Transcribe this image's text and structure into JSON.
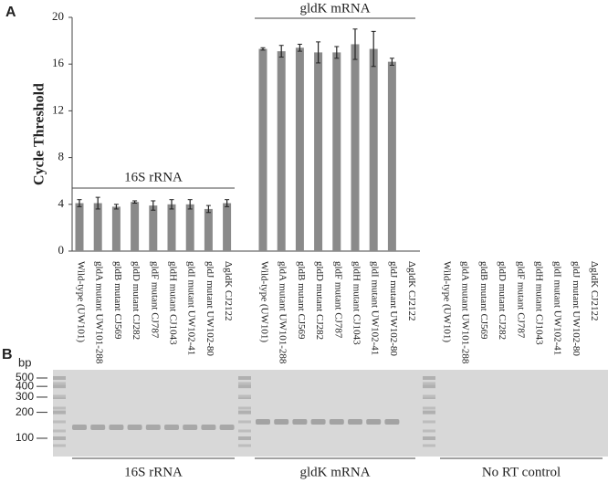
{
  "panel_labels": [
    "A",
    "B"
  ],
  "chart_data": {
    "type": "bar",
    "ylabel": "Cycle Threshold",
    "categories": [
      "Wild-type (UW101)",
      "gldA mutant UW101-288",
      "gldB mutant CJ569",
      "gldD mutant CJ282",
      "gldF mutant CJ787",
      "gldH mutant CJ1043",
      "gldI mutant UW102-41",
      "gldJ mutant UW102-80",
      "ΔgldK CJ2122"
    ],
    "series": [
      {
        "name": "16S rRNA",
        "color": "#8a8a8a",
        "values": [
          4.1,
          4.1,
          3.8,
          4.2,
          3.9,
          4.0,
          4.0,
          3.6,
          4.1
        ],
        "errors": [
          0.3,
          0.5,
          0.2,
          0.1,
          0.4,
          0.4,
          0.4,
          0.3,
          0.3
        ]
      },
      {
        "name": "gldK mRNA",
        "color": "#8a8a8a",
        "values": [
          17.3,
          17.1,
          17.4,
          17.0,
          17.0,
          17.7,
          17.3,
          16.2,
          null
        ],
        "errors": [
          0.1,
          0.5,
          0.3,
          0.9,
          0.5,
          1.3,
          1.5,
          0.3,
          null
        ]
      }
    ],
    "ylim": [
      0,
      20
    ],
    "yticks": [
      0,
      4,
      8,
      12,
      16,
      20
    ]
  },
  "gel": {
    "unit": "bp",
    "ladder": [
      500,
      400,
      300,
      200,
      100
    ],
    "groups": [
      "16S rRNA",
      "gldK mRNA",
      "No RT control"
    ]
  }
}
